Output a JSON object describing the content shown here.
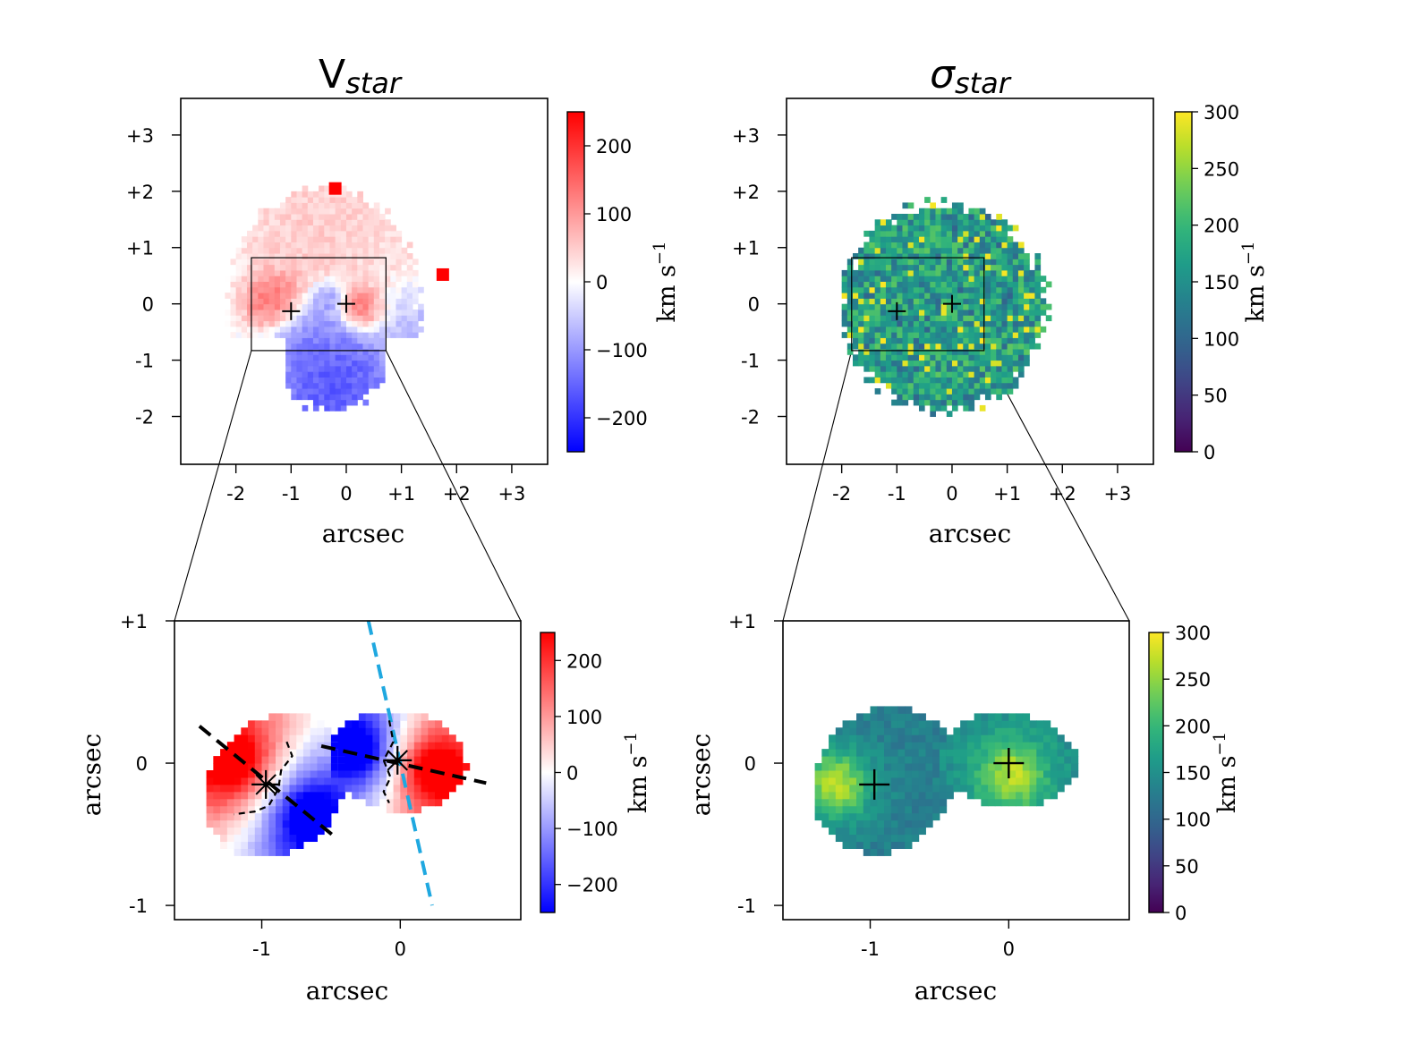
{
  "chart_data": [
    {
      "type": "heatmap",
      "panel": "top-left",
      "title_main": "V",
      "title_sub": "star",
      "xlabel": "arcsec",
      "ylabel": "",
      "xlim": [
        -3.0,
        3.65
      ],
      "ylim": [
        -2.85,
        3.65
      ],
      "xticks": [
        -2,
        -1,
        0,
        1,
        2,
        3
      ],
      "xtick_labels": [
        "-2",
        "-1",
        "0",
        "+1",
        "+2",
        "+3"
      ],
      "yticks": [
        -2,
        -1,
        0,
        1,
        2,
        3
      ],
      "ytick_labels": [
        "-2",
        "-1",
        "0",
        "+1",
        "+2",
        "+3"
      ],
      "colormap": "bwr",
      "colorbar": {
        "min": -250,
        "max": 250,
        "ticks": [
          -200,
          -100,
          0,
          100,
          200
        ],
        "tick_labels": [
          "−200",
          "−100",
          "0",
          "100",
          "200"
        ],
        "label": "km s",
        "label_exp": "−1"
      },
      "nuclei": [
        {
          "x": -1.0,
          "y": -0.13
        },
        {
          "x": 0.0,
          "y": 0.0
        }
      ],
      "zoom_box": {
        "x0": -1.72,
        "x1": 0.72,
        "y0": -0.83,
        "y1": 0.82
      },
      "velocity_field": [
        {
          "x": -1.25,
          "y": 0.05,
          "value": 190,
          "sigma": 0.3
        },
        {
          "x": -0.7,
          "y": -0.45,
          "value": -140,
          "sigma": 0.35
        },
        {
          "x": -0.35,
          "y": 0.12,
          "value": -150,
          "sigma": 0.17
        },
        {
          "x": 0.3,
          "y": -0.05,
          "value": 200,
          "sigma": 0.22
        },
        {
          "x": -0.2,
          "y": -1.4,
          "value": -200,
          "sigma": 0.6
        },
        {
          "x": -0.5,
          "y": 1.3,
          "value": 60,
          "sigma": 0.8
        },
        {
          "x": 1.3,
          "y": -0.2,
          "value": -80,
          "sigma": 0.45
        },
        {
          "x": 1.0,
          "y": 1.0,
          "value": 40,
          "sigma": 0.6
        }
      ],
      "hot_pixels": [
        {
          "x": -0.2,
          "y": 2.05,
          "value": 250
        },
        {
          "x": 1.75,
          "y": 0.52,
          "value": 250
        }
      ]
    },
    {
      "type": "heatmap",
      "panel": "top-right",
      "title_main": "σ",
      "title_sub": "star",
      "xlabel": "arcsec",
      "ylabel": "",
      "xlim": [
        -3.0,
        3.65
      ],
      "ylim": [
        -2.85,
        3.65
      ],
      "xticks": [
        -2,
        -1,
        0,
        1,
        2,
        3
      ],
      "xtick_labels": [
        "-2",
        "-1",
        "0",
        "+1",
        "+2",
        "+3"
      ],
      "yticks": [
        -2,
        -1,
        0,
        1,
        2,
        3
      ],
      "ytick_labels": [
        "-2",
        "-1",
        "0",
        "+1",
        "+2",
        "+3"
      ],
      "colormap": "viridis",
      "colorbar": {
        "min": 0,
        "max": 300,
        "ticks": [
          0,
          50,
          100,
          150,
          200,
          250,
          300
        ],
        "tick_labels": [
          "0",
          "50",
          "100",
          "150",
          "200",
          "250",
          "300"
        ],
        "label": "km s",
        "label_exp": "−1"
      },
      "nuclei": [
        {
          "x": -1.0,
          "y": -0.13
        },
        {
          "x": 0.0,
          "y": 0.0
        }
      ],
      "zoom_box": {
        "x0": -1.82,
        "x1": 0.58,
        "y0": -0.83,
        "y1": 0.82
      },
      "typical_value": 170,
      "value_range": [
        100,
        300
      ]
    },
    {
      "type": "heatmap",
      "panel": "bottom-left",
      "xlabel": "arcsec",
      "ylabel": "arcsec",
      "xlim": [
        -1.63,
        0.87
      ],
      "ylim": [
        -1.1,
        1.0
      ],
      "xticks": [
        -1,
        0
      ],
      "xtick_labels": [
        "-1",
        "0"
      ],
      "yticks": [
        -1,
        0,
        1
      ],
      "ytick_labels": [
        "-1",
        "0",
        "+1"
      ],
      "colormap": "bwr",
      "colorbar": {
        "min": -250,
        "max": 250,
        "ticks": [
          -200,
          -100,
          0,
          100,
          200
        ],
        "tick_labels": [
          "−200",
          "−100",
          "0",
          "100",
          "200"
        ],
        "label": "km s",
        "label_exp": "−1"
      },
      "nuclei": [
        {
          "x": -0.97,
          "y": -0.15,
          "style": "star"
        },
        {
          "x": -0.02,
          "y": 0.02,
          "style": "star"
        }
      ],
      "blobs": [
        {
          "cx": -0.9,
          "cy": -0.16,
          "rx": 0.46,
          "ry": 0.56,
          "angle": -45,
          "red": {
            "x": -1.22,
            "y": 0.02
          },
          "blue": {
            "x": -0.65,
            "y": -0.38
          }
        },
        {
          "cx": -0.02,
          "cy": 0.02,
          "rx": 0.5,
          "ry": 0.35,
          "angle": -8,
          "red": {
            "x": 0.25,
            "y": -0.05
          },
          "blue": {
            "x": -0.32,
            "y": 0.1
          }
        }
      ],
      "kinematic_axes": [
        {
          "color": "#000000",
          "points": [
            [
              -1.45,
              0.26
            ],
            [
              -0.47,
              -0.52
            ]
          ]
        },
        {
          "color": "#000000",
          "points": [
            [
              -0.57,
              0.12
            ],
            [
              0.62,
              -0.14
            ]
          ]
        },
        {
          "color": "#1fa8e0",
          "points": [
            [
              -0.23,
              1.0
            ],
            [
              0.23,
              -1.0
            ]
          ]
        }
      ]
    },
    {
      "type": "heatmap",
      "panel": "bottom-right",
      "xlabel": "arcsec",
      "ylabel": "arcsec",
      "xlim": [
        -1.63,
        0.87
      ],
      "ylim": [
        -1.1,
        1.0
      ],
      "xticks": [
        -1,
        0
      ],
      "xtick_labels": [
        "-1",
        "0"
      ],
      "yticks": [
        -1,
        0,
        1
      ],
      "ytick_labels": [
        "-1",
        "0",
        "+1"
      ],
      "colormap": "viridis",
      "colorbar": {
        "min": 0,
        "max": 300,
        "ticks": [
          0,
          50,
          100,
          150,
          200,
          250,
          300
        ],
        "tick_labels": [
          "0",
          "50",
          "100",
          "150",
          "200",
          "250",
          "300"
        ],
        "label": "km s",
        "label_exp": "−1"
      },
      "nuclei": [
        {
          "x": -0.97,
          "y": -0.15
        },
        {
          "x": 0.0,
          "y": 0.0
        }
      ],
      "blobs": [
        {
          "cx": -0.9,
          "cy": -0.12,
          "rx": 0.48,
          "ry": 0.55,
          "angle": -45,
          "core": {
            "x": -1.25,
            "y": -0.15,
            "value": 270
          },
          "edge_value": 130
        },
        {
          "cx": 0.0,
          "cy": 0.02,
          "rx": 0.5,
          "ry": 0.33,
          "angle": -5,
          "core": {
            "x": 0.02,
            "y": -0.08,
            "value": 270
          },
          "edge_value": 150
        }
      ]
    }
  ]
}
